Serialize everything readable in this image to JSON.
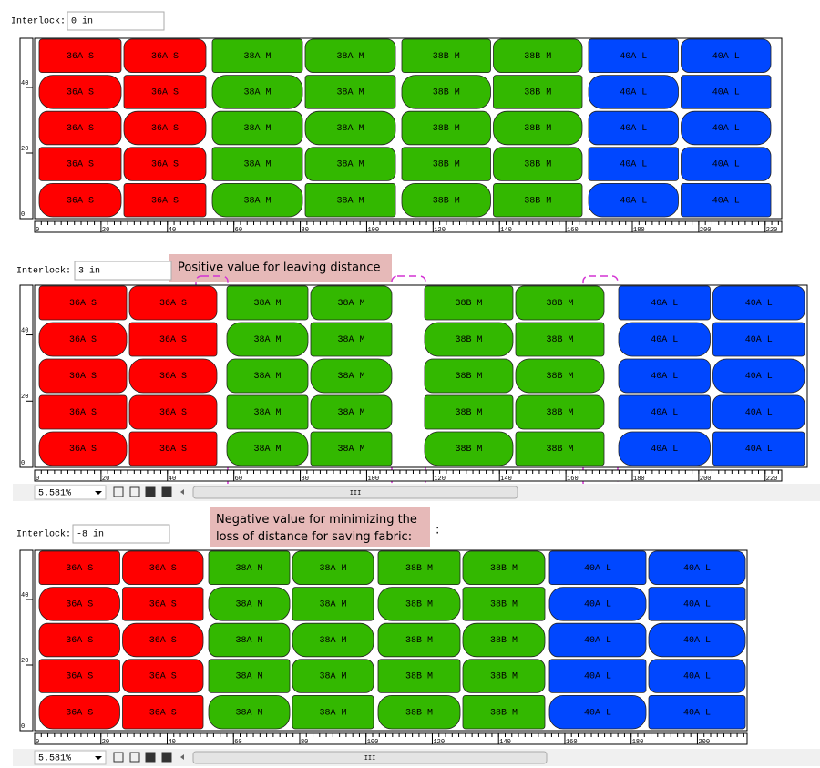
{
  "panels": [
    {
      "label": "Interlock:",
      "value": "0 in",
      "xlim": [
        0,
        225
      ],
      "xticks": [
        0,
        20,
        40,
        60,
        80,
        100,
        120,
        140,
        160,
        180,
        200,
        220
      ],
      "ylim": [
        0,
        55
      ],
      "yticks": [
        0,
        20,
        40
      ],
      "groups": [
        {
          "color": "#ff0000",
          "pieces": [
            "36A S",
            "36A S",
            "36A S",
            "36A S",
            "36A S",
            "36A S",
            "36A S",
            "36A S",
            "36A S",
            "36A S"
          ]
        },
        {
          "color": "#33b800",
          "pieces": [
            "38A M",
            "38A M",
            "38A M",
            "38A M",
            "38A M",
            "38A M",
            "38A M",
            "38A M",
            "38A M",
            "38A M"
          ]
        },
        {
          "color": "#33b800",
          "pieces": [
            "38B M",
            "38B M",
            "38B M",
            "38B M",
            "38B M",
            "38B M",
            "38B M",
            "38B M",
            "38B M",
            "38B M"
          ]
        },
        {
          "color": "#0047ff",
          "pieces": [
            "40A L",
            "40A L",
            "40A L",
            "40A L",
            "40A L",
            "40A L",
            "40A L",
            "40A L",
            "40A L",
            "40A L"
          ]
        }
      ]
    },
    {
      "label": "Interlock:",
      "value": "3 in",
      "annotation": "Positive value for leaving distance",
      "zoom": "5.581%",
      "scroll": "III",
      "xlim": [
        0,
        225
      ],
      "xticks": [
        0,
        20,
        40,
        60,
        80,
        100,
        120,
        140,
        160,
        180,
        200,
        220
      ],
      "ylim": [
        0,
        55
      ],
      "yticks": [
        0,
        20,
        40
      ],
      "groups": [
        {
          "color": "#ff0000",
          "pieces": [
            "36A S",
            "36A S",
            "36A S",
            "36A S",
            "36A S",
            "36A S",
            "36A S",
            "36A S",
            "36A S",
            "36A S"
          ]
        },
        {
          "color": "#33b800",
          "pieces": [
            "38A M",
            "38A M",
            "38A M",
            "38A M",
            "38A M",
            "38A M",
            "38A M",
            "38A M",
            "38A M",
            "38A M"
          ]
        },
        {
          "color": "#33b800",
          "pieces": [
            "38B M",
            "38B M",
            "38B M",
            "38B M",
            "38B M",
            "38B M",
            "38B M",
            "38B M",
            "38B M",
            "38B M"
          ]
        },
        {
          "color": "#0047ff",
          "pieces": [
            "40A L",
            "40A L",
            "40A L",
            "40A L",
            "40A L",
            "40A L",
            "40A L",
            "40A L",
            "40A L",
            "40A L"
          ]
        }
      ]
    },
    {
      "label": "Interlock:",
      "value": "-8 in",
      "annotation": "Negative value for minimizing the loss of distance for saving fabric:",
      "annotation_suffix": ":",
      "zoom": "5.581%",
      "scroll": "III",
      "xlim": [
        0,
        215
      ],
      "xticks": [
        0,
        20,
        40,
        60,
        80,
        100,
        120,
        140,
        160,
        180,
        200
      ],
      "ylim": [
        0,
        55
      ],
      "yticks": [
        0,
        20,
        40
      ],
      "groups": [
        {
          "color": "#ff0000",
          "pieces": [
            "36A S",
            "36A S",
            "36A S",
            "36A S",
            "36A S",
            "36A S",
            "36A S",
            "36A S",
            "36A S",
            "36A S"
          ]
        },
        {
          "color": "#33b800",
          "pieces": [
            "38A M",
            "38A M",
            "38A M",
            "38A M",
            "38A M",
            "38A M",
            "38A M",
            "38A M",
            "38A M",
            "38A M"
          ]
        },
        {
          "color": "#33b800",
          "pieces": [
            "38B M",
            "38B M",
            "38B M",
            "38B M",
            "38B M",
            "38B M",
            "38B M",
            "38B M",
            "38B M",
            "38B M"
          ]
        },
        {
          "color": "#0047ff",
          "pieces": [
            "40A L",
            "40A L",
            "40A L",
            "40A L",
            "40A L",
            "40A L",
            "40A L",
            "40A L",
            "40A L",
            "40A L"
          ]
        }
      ]
    }
  ]
}
